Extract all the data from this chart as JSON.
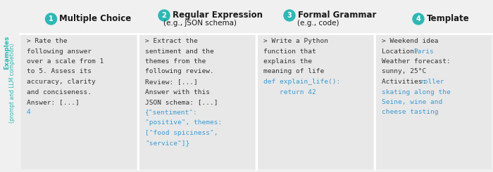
{
  "background_color": "#f0f0f0",
  "teal_color": "#2cb8b5",
  "blue_color": "#3d9bd4",
  "dark_text": "#1a1a1a",
  "mono_dark": "#333333",
  "cell_bg": "#e8e8e8",
  "sidebar_text_color": "#2cb8b5",
  "headers": [
    {
      "num": "1",
      "title": "Multiple Choice",
      "subtitle": ""
    },
    {
      "num": "2",
      "title": "Regular Expression",
      "subtitle": "(e.g., JSON schema)"
    },
    {
      "num": "3",
      "title": "Formal Grammar",
      "subtitle": "(e.g., code)"
    },
    {
      "num": "4",
      "title": "Template",
      "subtitle": ""
    }
  ],
  "col1_lines": [
    {
      "text": "> Rate the",
      "color": "#333333"
    },
    {
      "text": "following answer",
      "color": "#333333"
    },
    {
      "text": "over a scale from 1",
      "color": "#333333"
    },
    {
      "text": "to 5. Assess its",
      "color": "#333333"
    },
    {
      "text": "accuracy, clarity",
      "color": "#333333"
    },
    {
      "text": "and conciseness.",
      "color": "#333333"
    },
    {
      "text": "Answer: [...]",
      "color": "#333333"
    },
    {
      "text": "4",
      "color": "#3d9bd4"
    }
  ],
  "col2_lines": [
    {
      "text": "> Extract the",
      "color": "#333333"
    },
    {
      "text": "sentiment and the",
      "color": "#333333"
    },
    {
      "text": "themes from the",
      "color": "#333333"
    },
    {
      "text": "following review.",
      "color": "#333333"
    },
    {
      "text": "Review: [...]",
      "color": "#333333"
    },
    {
      "text": "Answer with this",
      "color": "#333333"
    },
    {
      "text": "JSON schema: [...]",
      "color": "#333333"
    },
    {
      "text": "{\"sentiment\":",
      "color": "#3d9bd4"
    },
    {
      "text": "\"positive\", themes:",
      "color": "#3d9bd4"
    },
    {
      "text": "[\"food spiciness\",",
      "color": "#3d9bd4"
    },
    {
      "text": "\"service\"]}",
      "color": "#3d9bd4"
    }
  ],
  "col3_lines": [
    {
      "text": "> Write a Python",
      "color": "#333333"
    },
    {
      "text": "function that",
      "color": "#333333"
    },
    {
      "text": "explains the",
      "color": "#333333"
    },
    {
      "text": "meaning of life",
      "color": "#333333"
    },
    {
      "text": "def explain_life():",
      "color": "#3d9bd4"
    },
    {
      "text": "    return 42",
      "color": "#3d9bd4"
    }
  ],
  "col4_lines": [
    {
      "text": "> Weekend idea",
      "color": "#333333"
    },
    {
      "text": "Location: ",
      "color": "#333333",
      "append": "Paris",
      "append_color": "#3d9bd4"
    },
    {
      "text": "Weather forecast:",
      "color": "#333333"
    },
    {
      "text": "sunny, 25°C",
      "color": "#333333"
    },
    {
      "text": "Activities: ",
      "color": "#333333",
      "append": "roller",
      "append_color": "#3d9bd4"
    },
    {
      "text": "skating along the",
      "color": "#3d9bd4"
    },
    {
      "text": "Seine, wine and",
      "color": "#3d9bd4"
    },
    {
      "text": "cheese tasting",
      "color": "#3d9bd4"
    }
  ],
  "sidebar_line1": "Examples",
  "sidebar_line2": "(prompt and LLM completion)",
  "figsize": [
    7.0,
    2.45
  ],
  "dpi": 100
}
